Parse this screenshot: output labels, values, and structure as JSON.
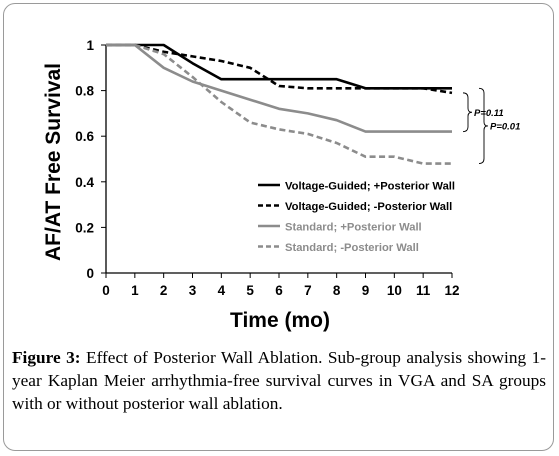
{
  "chart_data": {
    "type": "line",
    "xlabel": "Time (mo)",
    "ylabel": "AF/AT Free Survival",
    "xlim": [
      0,
      12
    ],
    "ylim": [
      0,
      1
    ],
    "x_ticks": [
      "0",
      "1",
      "2",
      "3",
      "4",
      "5",
      "6",
      "7",
      "8",
      "9",
      "10",
      "11",
      "12"
    ],
    "y_ticks": [
      "0",
      "0.2",
      "0.4",
      "0.6",
      "0.8",
      "1"
    ],
    "grid": false,
    "legend_position": "bottom-right",
    "series": [
      {
        "name": "Voltage-Guided; +Posterior Wall",
        "color": "#000000",
        "style": "solid",
        "points": [
          [
            0,
            1
          ],
          [
            1,
            1
          ],
          [
            2,
            1
          ],
          [
            3,
            0.92
          ],
          [
            4,
            0.85
          ],
          [
            5,
            0.85
          ],
          [
            6,
            0.85
          ],
          [
            7,
            0.85
          ],
          [
            8,
            0.85
          ],
          [
            9,
            0.81
          ],
          [
            10,
            0.81
          ],
          [
            11,
            0.81
          ],
          [
            12,
            0.81
          ]
        ]
      },
      {
        "name": "Voltage-Guided; -Posterior Wall",
        "color": "#000000",
        "style": "dashed",
        "points": [
          [
            0,
            1
          ],
          [
            1,
            1
          ],
          [
            2,
            0.97
          ],
          [
            3,
            0.95
          ],
          [
            4,
            0.93
          ],
          [
            5,
            0.9
          ],
          [
            6,
            0.82
          ],
          [
            7,
            0.81
          ],
          [
            8,
            0.81
          ],
          [
            9,
            0.81
          ],
          [
            10,
            0.81
          ],
          [
            11,
            0.81
          ],
          [
            12,
            0.79
          ]
        ]
      },
      {
        "name": "Standard; +Posterior Wall",
        "color": "#8c8c8c",
        "style": "solid",
        "points": [
          [
            0,
            1
          ],
          [
            1,
            1
          ],
          [
            2,
            0.9
          ],
          [
            3,
            0.84
          ],
          [
            4,
            0.8
          ],
          [
            5,
            0.76
          ],
          [
            6,
            0.72
          ],
          [
            7,
            0.7
          ],
          [
            8,
            0.67
          ],
          [
            9,
            0.62
          ],
          [
            10,
            0.62
          ],
          [
            11,
            0.62
          ],
          [
            12,
            0.62
          ]
        ]
      },
      {
        "name": "Standard; -Posterior Wall",
        "color": "#8c8c8c",
        "style": "dashed",
        "points": [
          [
            0,
            1
          ],
          [
            1,
            1
          ],
          [
            2,
            0.96
          ],
          [
            3,
            0.86
          ],
          [
            4,
            0.75
          ],
          [
            5,
            0.66
          ],
          [
            6,
            0.63
          ],
          [
            7,
            0.61
          ],
          [
            8,
            0.57
          ],
          [
            9,
            0.51
          ],
          [
            10,
            0.51
          ],
          [
            11,
            0.48
          ],
          [
            12,
            0.48
          ]
        ]
      }
    ],
    "annotations": [
      {
        "text": "P=0.11",
        "between": [
          "Voltage-Guided; -Posterior Wall",
          "Standard; +Posterior Wall"
        ]
      },
      {
        "text": "P=0.01",
        "between": [
          "Voltage-Guided; +Posterior Wall",
          "Standard; -Posterior Wall"
        ]
      }
    ]
  },
  "caption": {
    "label": "Figure 3:",
    "text": " Effect of Posterior Wall Ablation. Sub-group analysis showing 1-year Kaplan Meier arrhythmia-free survival curves in VGA and SA groups with or without posterior wall ablation."
  }
}
